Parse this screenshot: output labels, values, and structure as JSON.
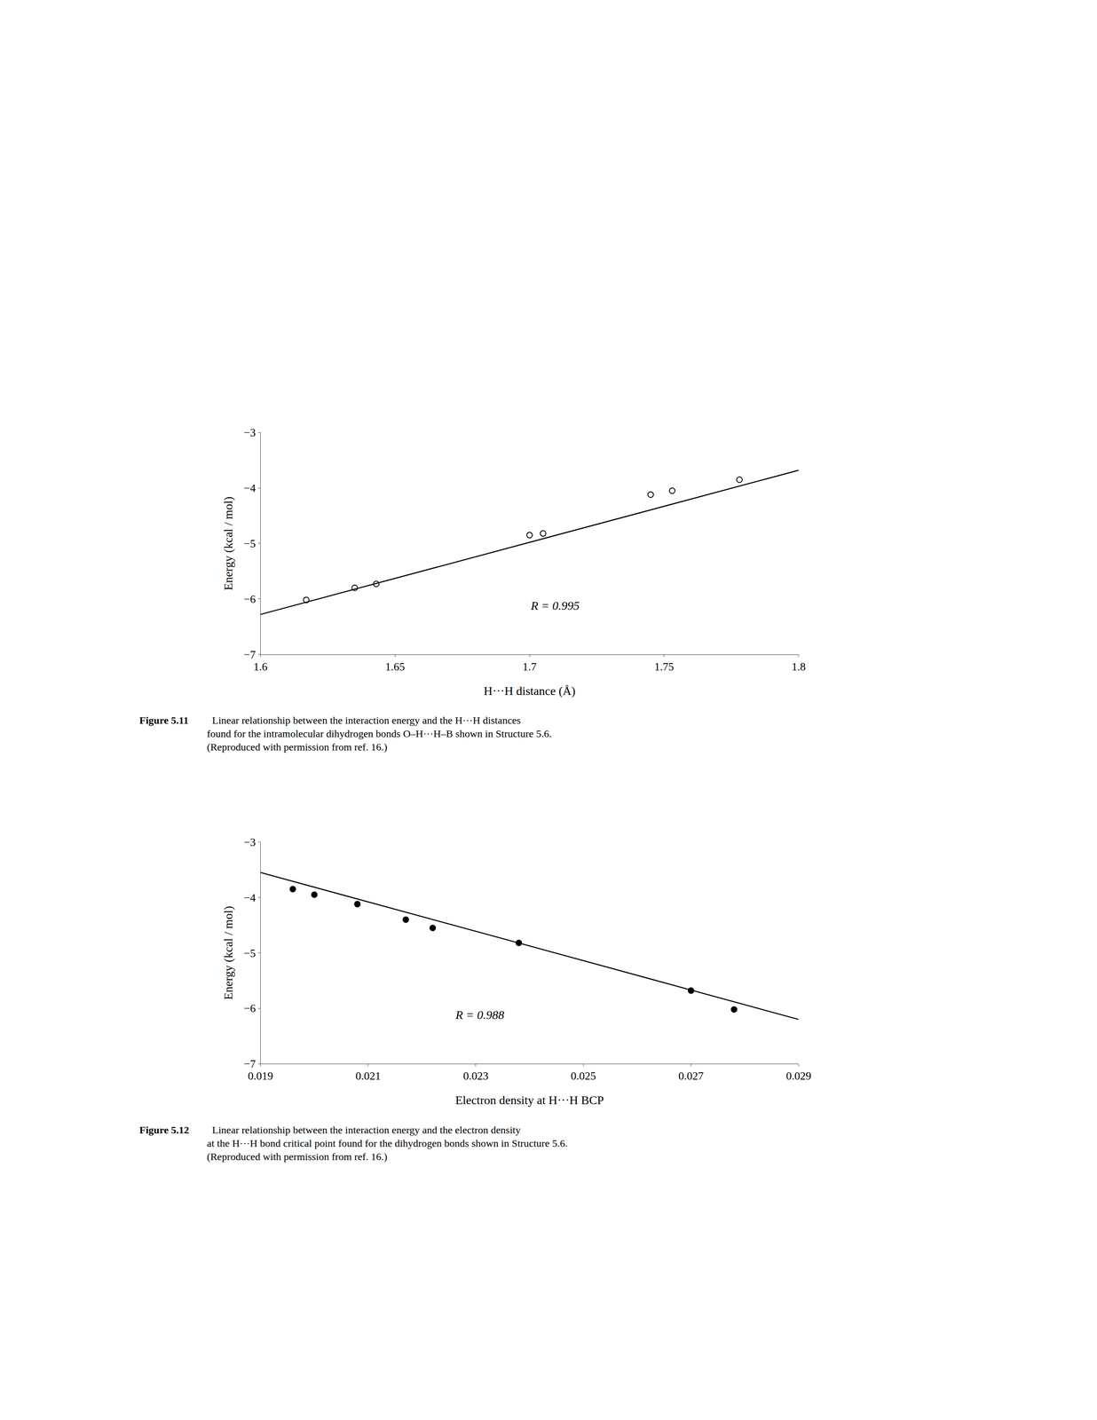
{
  "chart_data": [
    {
      "type": "scatter",
      "xlabel": "H···H distance (Å)",
      "ylabel": "Energy (kcal / mol)",
      "xlim": [
        1.6,
        1.8
      ],
      "ylim": [
        -7.0,
        -3.0
      ],
      "xticks": [
        1.6,
        1.65,
        1.7,
        1.75,
        1.8
      ],
      "yticks": [
        -7,
        -6,
        -5,
        -4,
        -3
      ],
      "grid": false,
      "annotation": "R = 0.995",
      "caption_label": "Figure 5.11",
      "caption": [
        "  Linear relationship between the interaction energy and the H···H distances",
        "found for the intramolecular dihydrogen bonds O–H···H–B shown in Structure 5.6.",
        "(Reproduced with permission from ref. 16.)"
      ],
      "series": [
        {
          "type": "scatter",
          "color": "black",
          "marker": "circle-open",
          "x": [
            1.617,
            1.635,
            1.643,
            1.7,
            1.705,
            1.745,
            1.753,
            1.778
          ],
          "values": [
            -6.02,
            -5.8,
            -5.73,
            -4.85,
            -4.82,
            -4.12,
            -4.05,
            -3.85
          ]
        },
        {
          "type": "line",
          "color": "black",
          "line_style": "solid",
          "x": [
            1.6,
            1.8
          ],
          "values": [
            -6.28,
            -3.68
          ]
        }
      ]
    },
    {
      "type": "scatter",
      "xlabel": "Electron density at H···H BCP",
      "ylabel": "Energy (kcal / mol)",
      "xlim": [
        0.019,
        0.029
      ],
      "ylim": [
        -7.0,
        -3.0
      ],
      "xticks": [
        0.019,
        0.021,
        0.023,
        0.025,
        0.027,
        0.029
      ],
      "yticks": [
        -7,
        -6,
        -5,
        -4,
        -3
      ],
      "grid": false,
      "annotation": "R = 0.988",
      "caption_label": "Figure 5.12",
      "caption": [
        "  Linear relationship between the interaction energy and the electron density",
        "at the H···H bond critical point found for the dihydrogen bonds shown in Structure 5.6.",
        "(Reproduced with permission from ref. 16.)"
      ],
      "series": [
        {
          "type": "scatter",
          "color": "black",
          "marker": "circle",
          "x": [
            0.0196,
            0.02,
            0.0208,
            0.0217,
            0.0222,
            0.0238,
            0.027,
            0.0278
          ],
          "values": [
            -3.85,
            -3.95,
            -4.12,
            -4.4,
            -4.55,
            -4.82,
            -5.68,
            -6.02
          ]
        },
        {
          "type": "line",
          "color": "black",
          "line_style": "solid",
          "x": [
            0.019,
            0.029
          ],
          "values": [
            -3.55,
            -6.2
          ]
        }
      ]
    }
  ]
}
